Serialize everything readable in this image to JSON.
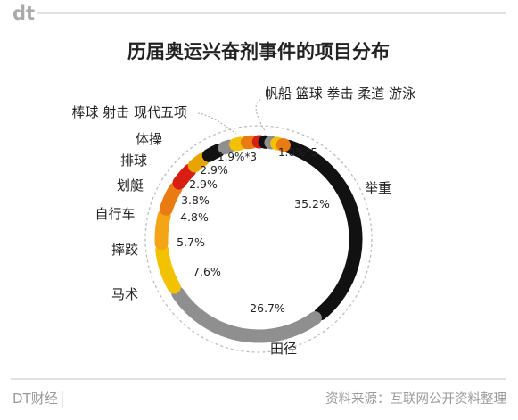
{
  "brand": {
    "logo_text": "dt",
    "name": "DT财经"
  },
  "source_note": "资料来源：互联网公开资料整理",
  "colors": {
    "background": "#ffffff",
    "text": "#222222",
    "muted": "#9a9a9a",
    "rule": "#cfcfcf",
    "dashed_ring": "#bdbdbd"
  },
  "chart_data": {
    "type": "pie",
    "style": "donut-segments",
    "title": "历届奥运兴奋剂事件的项目分布",
    "slices": [
      {
        "label": "举重",
        "value": 35.2,
        "value_text": "35.2%",
        "color": "#111111"
      },
      {
        "label": "田径",
        "value": 26.7,
        "value_text": "26.7%",
        "color": "#8f8f8f"
      },
      {
        "label": "马术",
        "value": 7.6,
        "value_text": "7.6%",
        "color": "#f2c100"
      },
      {
        "label": "摔跤",
        "value": 5.7,
        "value_text": "5.7%",
        "color": "#f3a516"
      },
      {
        "label": "自行车",
        "value": 4.8,
        "value_text": "4.8%",
        "color": "#ea7b12"
      },
      {
        "label": "划艇",
        "value": 3.8,
        "value_text": "3.8%",
        "color": "#d81e12"
      },
      {
        "label": "排球",
        "value": 2.9,
        "value_text": "2.9%",
        "color": "#e8a400"
      },
      {
        "label": "体操",
        "value": 2.9,
        "value_text": "2.9%",
        "color": "#111111"
      },
      {
        "label": "棒球",
        "value": 1.9,
        "value_text": "",
        "color": "#8f8f8f"
      },
      {
        "label": "射击",
        "value": 1.9,
        "value_text": "",
        "color": "#f2c100"
      },
      {
        "label": "现代五项",
        "value": 1.9,
        "value_text": "",
        "color": "#ea7b12"
      },
      {
        "label": "帆船",
        "value": 1.0,
        "value_text": "",
        "color": "#d81e12"
      },
      {
        "label": "篮球",
        "value": 1.0,
        "value_text": "",
        "color": "#111111"
      },
      {
        "label": "拳击",
        "value": 1.0,
        "value_text": "",
        "color": "#8f8f8f"
      },
      {
        "label": "柔道",
        "value": 1.0,
        "value_text": "",
        "color": "#f2c100"
      },
      {
        "label": "游泳",
        "value": 1.0,
        "value_text": "",
        "color": "#ea7b12"
      }
    ],
    "group_labels": [
      {
        "text": "棒球  射击  现代五项",
        "value_text": "1.9%*3"
      },
      {
        "text": "帆船  篮球  拳击  柔道  游泳",
        "value_text": "1.0%*5"
      }
    ]
  }
}
